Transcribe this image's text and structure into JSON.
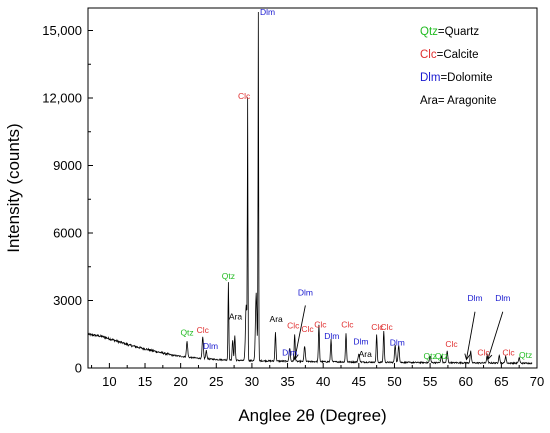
{
  "chart_data": {
    "type": "line",
    "xlabel": "Anglee 2θ (Degree)",
    "ylabel": "Intensity (counts)",
    "xlim": [
      7,
      70
    ],
    "ylim": [
      0,
      16000
    ],
    "x_ticks": [
      10,
      15,
      20,
      25,
      30,
      35,
      40,
      45,
      50,
      55,
      60,
      65,
      70
    ],
    "y_ticks": [
      0,
      3000,
      6000,
      9000,
      12000,
      15000
    ],
    "y_tick_labels": [
      "0",
      "3000",
      "6000",
      "9000",
      "12,000",
      "15,000"
    ],
    "colors": {
      "Qtz": "#22bb22",
      "Clc": "#e03030",
      "Dlm": "#1a1ad0",
      "Ara": "#000000",
      "line": "#000000"
    },
    "background": [
      [
        7,
        1500
      ],
      [
        9,
        1400
      ],
      [
        11,
        1200
      ],
      [
        13,
        1000
      ],
      [
        15,
        850
      ],
      [
        17,
        700
      ],
      [
        19,
        560
      ],
      [
        21,
        480
      ],
      [
        23,
        420
      ],
      [
        25,
        380
      ],
      [
        27,
        350
      ],
      [
        29,
        330
      ],
      [
        31,
        320
      ],
      [
        33,
        310
      ],
      [
        35,
        300
      ],
      [
        37,
        290
      ],
      [
        40,
        280
      ],
      [
        43,
        270
      ],
      [
        46,
        260
      ],
      [
        50,
        250
      ],
      [
        55,
        240
      ],
      [
        60,
        230
      ],
      [
        65,
        220
      ],
      [
        70,
        210
      ]
    ],
    "peaks": [
      {
        "x": 20.9,
        "h": 700,
        "w": 0.12
      },
      {
        "x": 23.1,
        "h": 950,
        "w": 0.12
      },
      {
        "x": 23.6,
        "h": 350,
        "w": 0.12
      },
      {
        "x": 26.7,
        "h": 3500,
        "w": 0.08
      },
      {
        "x": 27.3,
        "h": 900,
        "w": 0.1
      },
      {
        "x": 27.6,
        "h": 1100,
        "w": 0.1
      },
      {
        "x": 29.4,
        "h": 11300,
        "w": 0.06
      },
      {
        "x": 29.2,
        "h": 2500,
        "w": 0.15
      },
      {
        "x": 30.9,
        "h": 15400,
        "w": 0.06
      },
      {
        "x": 30.6,
        "h": 3000,
        "w": 0.15
      },
      {
        "x": 33.3,
        "h": 1300,
        "w": 0.1
      },
      {
        "x": 35.3,
        "h": 600,
        "w": 0.12
      },
      {
        "x": 36.0,
        "h": 1200,
        "w": 0.1
      },
      {
        "x": 37.4,
        "h": 700,
        "w": 0.12
      },
      {
        "x": 39.4,
        "h": 1600,
        "w": 0.1
      },
      {
        "x": 41.1,
        "h": 1000,
        "w": 0.1
      },
      {
        "x": 43.2,
        "h": 1300,
        "w": 0.1
      },
      {
        "x": 45.0,
        "h": 350,
        "w": 0.15
      },
      {
        "x": 47.5,
        "h": 1200,
        "w": 0.1
      },
      {
        "x": 48.5,
        "h": 1400,
        "w": 0.1
      },
      {
        "x": 50.1,
        "h": 800,
        "w": 0.12
      },
      {
        "x": 50.6,
        "h": 800,
        "w": 0.12
      },
      {
        "x": 55.0,
        "h": 300,
        "w": 0.12
      },
      {
        "x": 56.6,
        "h": 300,
        "w": 0.12
      },
      {
        "x": 57.4,
        "h": 500,
        "w": 0.12
      },
      {
        "x": 60.7,
        "h": 500,
        "w": 0.12
      },
      {
        "x": 63.0,
        "h": 300,
        "w": 0.12
      },
      {
        "x": 64.7,
        "h": 350,
        "w": 0.12
      },
      {
        "x": 65.6,
        "h": 300,
        "w": 0.12
      },
      {
        "x": 67.5,
        "h": 250,
        "w": 0.12
      }
    ],
    "peak_labels": [
      {
        "text": "Qtz",
        "phase": "Qtz",
        "x": 20.9,
        "y": 1450
      },
      {
        "text": "Clc",
        "phase": "Clc",
        "x": 23.1,
        "y": 1550
      },
      {
        "text": "Dlm",
        "phase": "Dlm",
        "x": 24.2,
        "y": 850
      },
      {
        "text": "Qtz",
        "phase": "Qtz",
        "x": 26.7,
        "y": 3950
      },
      {
        "text": "Ara",
        "phase": "Ara",
        "x": 27.7,
        "y": 2150
      },
      {
        "text": "Clc",
        "phase": "Clc",
        "x": 28.9,
        "y": 11950
      },
      {
        "text": "Dlm",
        "phase": "Dlm",
        "x": 32.2,
        "y": 15700
      },
      {
        "text": "Ara",
        "phase": "Ara",
        "x": 33.4,
        "y": 2050
      },
      {
        "text": "Dlm",
        "phase": "Dlm",
        "x": 35.3,
        "y": 550
      },
      {
        "text": "Clc",
        "phase": "Clc",
        "x": 35.8,
        "y": 1750
      },
      {
        "text": "Dlm",
        "phase": "Dlm",
        "x": 37.5,
        "y": 3230
      },
      {
        "text": "Clc",
        "phase": "Clc",
        "x": 37.8,
        "y": 1600
      },
      {
        "text": "Clc",
        "phase": "Clc",
        "x": 39.6,
        "y": 1800
      },
      {
        "text": "Dlm",
        "phase": "Dlm",
        "x": 41.2,
        "y": 1300
      },
      {
        "text": "Clc",
        "phase": "Clc",
        "x": 43.4,
        "y": 1800
      },
      {
        "text": "Dlm",
        "phase": "Dlm",
        "x": 45.3,
        "y": 1050
      },
      {
        "text": "Ara",
        "phase": "Ara",
        "x": 45.9,
        "y": 480
      },
      {
        "text": "Clc",
        "phase": "Clc",
        "x": 47.6,
        "y": 1680
      },
      {
        "text": "Clc",
        "phase": "Clc",
        "x": 48.9,
        "y": 1680
      },
      {
        "text": "Dlm",
        "phase": "Dlm",
        "x": 50.4,
        "y": 1000
      },
      {
        "text": "Qtz",
        "phase": "Qtz",
        "x": 55.0,
        "y": 400
      },
      {
        "text": "Qtz",
        "phase": "Qtz",
        "x": 56.6,
        "y": 400
      },
      {
        "text": "Clc",
        "phase": "Clc",
        "x": 58.0,
        "y": 940
      },
      {
        "text": "Dlm",
        "phase": "Dlm",
        "x": 61.3,
        "y": 2970
      },
      {
        "text": "Dlm",
        "phase": "Dlm",
        "x": 65.2,
        "y": 2970
      },
      {
        "text": "Clc",
        "phase": "Clc",
        "x": 62.5,
        "y": 550
      },
      {
        "text": "Clc",
        "phase": "Clc",
        "x": 66.0,
        "y": 550
      },
      {
        "text": "Qtz",
        "phase": "Qtz",
        "x": 68.4,
        "y": 440
      }
    ],
    "arrows": [
      {
        "from": [
          37.5,
          2780
        ],
        "to": [
          36.0,
          380
        ]
      },
      {
        "from": [
          61.3,
          2500
        ],
        "to": [
          60.1,
          380
        ]
      },
      {
        "from": [
          65.2,
          2500
        ],
        "to": [
          63.1,
          380
        ]
      }
    ],
    "legend": {
      "position": "top-right",
      "entries": [
        {
          "code": "Qtz",
          "phase": "Qtz",
          "rest": "=Quartz"
        },
        {
          "code": "Clc",
          "phase": "Clc",
          "rest": "=Calcite"
        },
        {
          "code": "Dlm",
          "phase": "Dlm",
          "rest": "=Dolomite"
        },
        {
          "code": "Ara",
          "phase": "Ara",
          "rest": "= Aragonite"
        }
      ]
    }
  }
}
